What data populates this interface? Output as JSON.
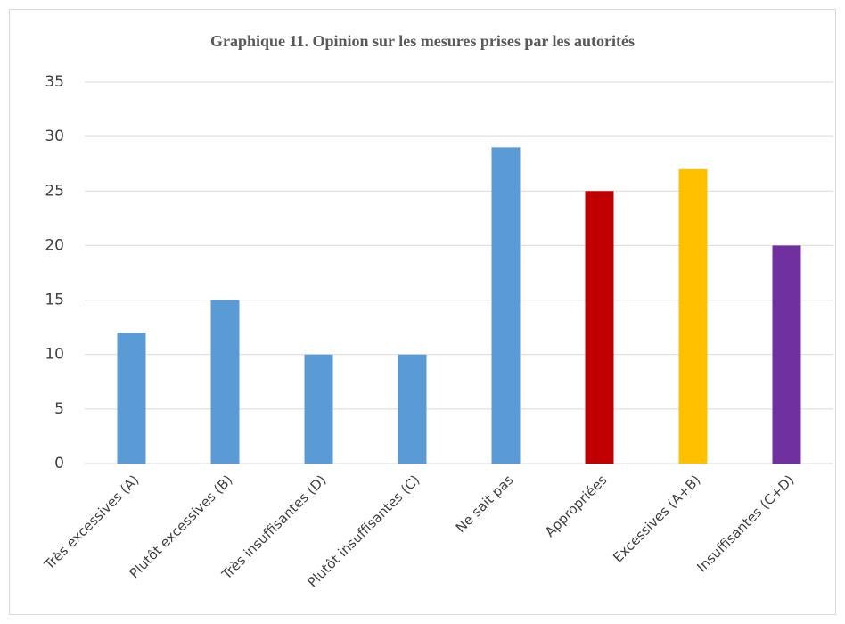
{
  "chart_data": {
    "type": "bar",
    "title": "Graphique 11. Opinion sur les mesures prises par les autorités",
    "categories": [
      "Très excessives (A)",
      "Plutôt excessives (B)",
      "Très insuffisantes (D)",
      "Plutôt insuffisantes (C)",
      "Ne sait pas",
      "Appropriées",
      "Excessives (A+B)",
      "Insuffisantes (C+D)"
    ],
    "values": [
      12,
      15,
      10,
      10,
      29,
      25,
      27,
      20
    ],
    "colors": [
      "#5b9bd5",
      "#5b9bd5",
      "#5b9bd5",
      "#5b9bd5",
      "#5b9bd5",
      "#c00000",
      "#ffc000",
      "#7030a0"
    ],
    "ylim": [
      0,
      35
    ],
    "yticks": [
      0,
      5,
      10,
      15,
      20,
      25,
      30,
      35
    ],
    "grid": true
  }
}
